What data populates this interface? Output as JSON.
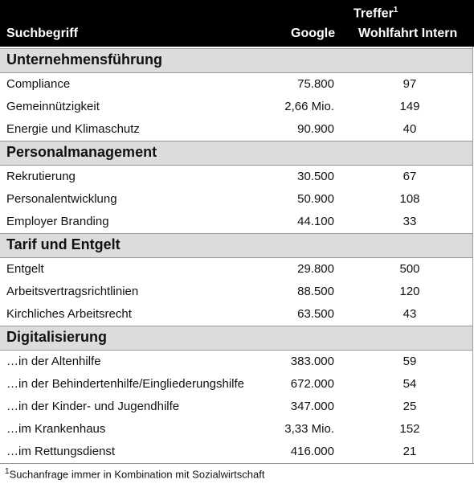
{
  "header": {
    "col1": "Suchbegriff",
    "group": "Treffer",
    "group_note": "1",
    "col2": "Google",
    "col3": "Wohlfahrt Intern"
  },
  "sections": [
    {
      "title": "Unternehmensführung",
      "rows": [
        [
          "Compliance",
          "75.800",
          "97"
        ],
        [
          "Gemeinnützigkeit",
          "2,66 Mio.",
          "149"
        ],
        [
          "Energie und Klimaschutz",
          "90.900",
          "40"
        ]
      ]
    },
    {
      "title": "Personalmanagement",
      "rows": [
        [
          "Rekrutierung",
          "30.500",
          "67"
        ],
        [
          "Personalentwicklung",
          "50.900",
          "108"
        ],
        [
          "Employer Branding",
          "44.100",
          "33"
        ]
      ]
    },
    {
      "title": "Tarif und Entgelt",
      "rows": [
        [
          "Entgelt",
          "29.800",
          "500"
        ],
        [
          "Arbeitsvertragsrichtlinien",
          "88.500",
          "120"
        ],
        [
          "Kirchliches Arbeitsrecht",
          "63.500",
          "43"
        ]
      ]
    },
    {
      "title": "Digitalisierung",
      "rows": [
        [
          "…in der Altenhilfe",
          "383.000",
          "59"
        ],
        [
          "…in der Behindertenhilfe/Eingliederungshilfe",
          "672.000",
          "54"
        ],
        [
          "…in der Kinder- und Jugendhilfe",
          "347.000",
          "25"
        ],
        [
          "…im Krankenhaus",
          "3,33 Mio.",
          "152"
        ],
        [
          "…im Rettungsdienst",
          "416.000",
          "21"
        ]
      ]
    }
  ],
  "footnote": {
    "marker": "1",
    "text": "Suchanfrage immer in Kombination mit Sozialwirtschaft"
  }
}
